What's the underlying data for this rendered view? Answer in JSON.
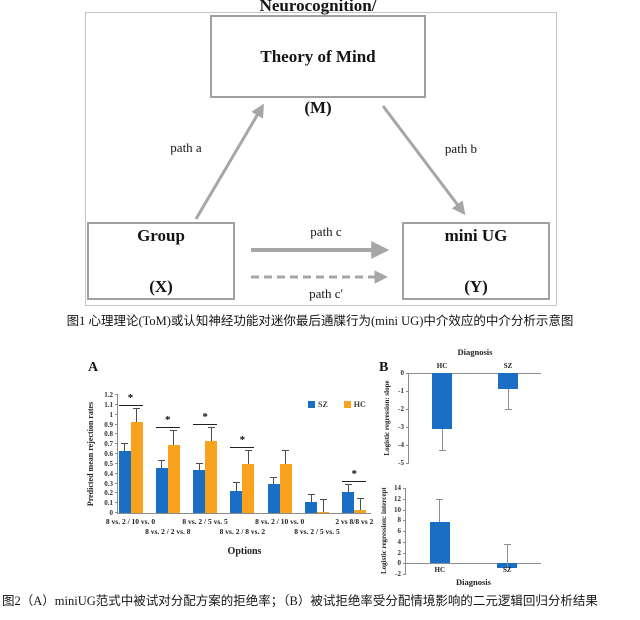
{
  "figure1": {
    "mediator_box": [
      "Neurocognition/",
      "Theory of Mind",
      "(M)"
    ],
    "predictor_box": [
      "Group",
      "(X)"
    ],
    "outcome_box": [
      "mini UG",
      "(Y)"
    ],
    "path_a": "path a",
    "path_b": "path b",
    "path_c": "path c",
    "path_c_prime": "path c'",
    "caption": "图1 心理理论(ToM)或认知神经功能对迷你最后通牒行为(mini UG)中介效应的中介分析示意图"
  },
  "figure2": {
    "panel_a_label": "A",
    "panel_b_label": "B",
    "caption": "图2（A）miniUG范式中被试对分配方案的拒绝率；（B）被试拒绝率受分配情境影响的二元逻辑回归分析结果"
  },
  "colors": {
    "sz_blue": "#1a6fc5",
    "hc_orange": "#f9a21d",
    "arrow_gray": "#a6a6a6",
    "axis_gray": "#8c8c8c"
  },
  "chart_data": [
    {
      "id": "A",
      "type": "bar",
      "title": "",
      "xlabel": "Options",
      "ylabel": "Predicted mean rejection rates",
      "ylim": [
        0,
        1.2
      ],
      "ytick_step": 0.1,
      "grid": false,
      "legend_position": "top-right",
      "categories": [
        "8 vs. 2 / 10 vs. 0",
        "8 vs. 2 / 2 vs. 8",
        "8 vs. 2 / 5 vs. 5",
        "8 vs. 2 / 8 vs. 2",
        "8 vs. 2 / 10 vs. 0",
        "8 vs. 2 / 5 vs. 5",
        "2 vs 8/8 vs 2"
      ],
      "series": [
        {
          "name": "SZ",
          "color": "#1a6fc5",
          "values": [
            0.63,
            0.46,
            0.44,
            0.22,
            0.29,
            0.11,
            0.21
          ],
          "errors": [
            0.07,
            0.07,
            0.06,
            0.09,
            0.07,
            0.07,
            0.07
          ]
        },
        {
          "name": "HC",
          "color": "#f9a21d",
          "values": [
            0.93,
            0.69,
            0.73,
            0.5,
            0.5,
            0.01,
            0.03
          ],
          "errors": [
            0.13,
            0.14,
            0.13,
            0.13,
            0.13,
            0.12,
            0.11
          ]
        }
      ],
      "significance": [
        true,
        true,
        true,
        true,
        false,
        false,
        true
      ],
      "sig_marker": "*"
    },
    {
      "id": "B-top",
      "type": "bar",
      "title": "Diagnosis",
      "xlabel": "",
      "ylabel": "Logistic regression: slope",
      "ylim": [
        -5,
        0
      ],
      "yticks": [
        0,
        -1,
        -2,
        -3,
        -4,
        -5
      ],
      "grid": false,
      "categories": [
        "HC",
        "SZ"
      ],
      "values": [
        -3.1,
        -0.9
      ],
      "errors": [
        1.2,
        1.1
      ],
      "error_direction": "down",
      "bar_color": "#1a6fc5"
    },
    {
      "id": "B-bottom",
      "type": "bar",
      "title": "",
      "xlabel": "Diagnosis",
      "ylabel": "Logistic regression: intercept",
      "ylim": [
        -2,
        14
      ],
      "yticks": [
        14,
        12,
        10,
        8,
        6,
        4,
        2,
        0,
        -2
      ],
      "grid": false,
      "categories": [
        "HC",
        "SZ"
      ],
      "values": [
        7.6,
        -0.9
      ],
      "errors": [
        4.3,
        4.4
      ],
      "error_direction": "up",
      "bar_color": "#1a6fc5"
    }
  ]
}
